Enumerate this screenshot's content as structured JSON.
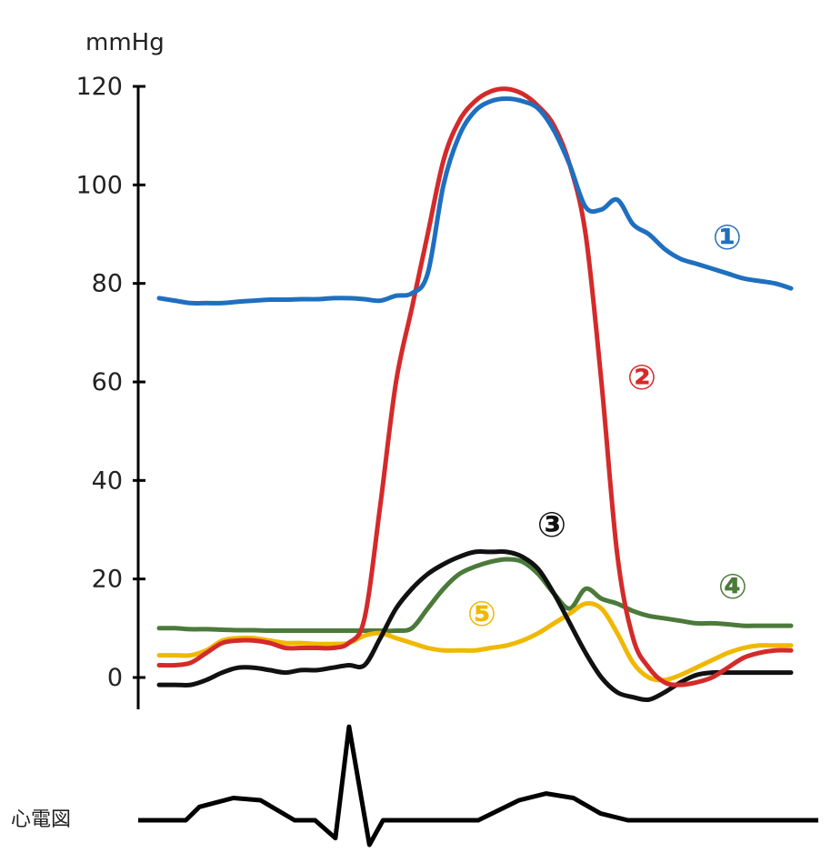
{
  "chart_data": {
    "type": "line",
    "y_unit": "mmHg",
    "ylim": [
      -5,
      120
    ],
    "y_ticks": [
      "120",
      "100",
      "80",
      "60",
      "40",
      "20",
      "0"
    ],
    "y_tick_values": [
      120,
      100,
      80,
      60,
      40,
      20,
      0
    ],
    "grid": false,
    "x": [
      0,
      2.5,
      5,
      7.5,
      10,
      12.5,
      15,
      17.5,
      20,
      22.5,
      25,
      27.5,
      30,
      32.5,
      35,
      37.5,
      40,
      42.5,
      45,
      47.5,
      50,
      52.5,
      55,
      57.5,
      60,
      62.5,
      65,
      67.5,
      70,
      72.5,
      75,
      77.5,
      80,
      82.5,
      85,
      87.5,
      90,
      92.5,
      95,
      97.5,
      100
    ],
    "series": [
      {
        "name": "①",
        "color": "#1f6fc0",
        "values": [
          77,
          76.5,
          76,
          76,
          76,
          76.3,
          76.5,
          76.7,
          76.7,
          76.8,
          76.8,
          77,
          77,
          76.8,
          76.5,
          77.5,
          78,
          82,
          100,
          110,
          115,
          117,
          117.5,
          117,
          115.5,
          111,
          104,
          95.5,
          95,
          97,
          92,
          90,
          87,
          85,
          84,
          83,
          82,
          81,
          80.5,
          80,
          79
        ]
      },
      {
        "name": "②",
        "color": "#d42a2a",
        "values": [
          2.5,
          2.5,
          3,
          5,
          7,
          7.5,
          7.5,
          7,
          6,
          6,
          6,
          6,
          7,
          12,
          35,
          60,
          75,
          90,
          105,
          113,
          117,
          119,
          119.5,
          118.5,
          116,
          112,
          104,
          90,
          60,
          25,
          8,
          2,
          -1,
          -1.5,
          -1,
          0,
          2,
          4,
          5,
          5.5,
          5.5
        ]
      },
      {
        "name": "③",
        "color": "#111111",
        "values": [
          -1.5,
          -1.5,
          -1.5,
          -0.5,
          1,
          2,
          2,
          1.5,
          1,
          1.5,
          1.5,
          2,
          2.5,
          2.5,
          8,
          14,
          18,
          21,
          23,
          24.5,
          25.5,
          25.5,
          25.5,
          24.5,
          22,
          17,
          11,
          5,
          0,
          -3,
          -4,
          -4.5,
          -3,
          -1,
          0.5,
          1,
          1,
          1,
          1,
          1,
          1
        ]
      },
      {
        "name": "④",
        "color": "#4b7a3a",
        "values": [
          10,
          10,
          9.8,
          9.8,
          9.7,
          9.6,
          9.6,
          9.5,
          9.5,
          9.5,
          9.5,
          9.5,
          9.5,
          9.5,
          9.5,
          9.5,
          10,
          14,
          18,
          21,
          22.5,
          23.5,
          24,
          23.5,
          21,
          17,
          14,
          18,
          16,
          15,
          13.5,
          12.5,
          12,
          11.5,
          11,
          11,
          10.8,
          10.5,
          10.5,
          10.5,
          10.5
        ]
      },
      {
        "name": "⑤",
        "color": "#f0b800",
        "values": [
          4.5,
          4.5,
          4.5,
          5.5,
          7.5,
          8,
          8,
          7.5,
          7,
          7,
          6.8,
          6.8,
          7,
          8.5,
          9,
          8,
          7,
          6,
          5.5,
          5.5,
          5.5,
          6,
          6.5,
          7.5,
          9,
          11,
          13,
          15,
          14,
          9,
          3,
          0,
          -0.5,
          0.5,
          2,
          3.5,
          5,
          6,
          6.5,
          6.5,
          6.5
        ]
      }
    ],
    "ecg": {
      "label": "心電図",
      "x": [
        0,
        7,
        9,
        14,
        18,
        23,
        26,
        29,
        31,
        34,
        36,
        39,
        42,
        44,
        50,
        56,
        60,
        64,
        68,
        72,
        76,
        80,
        90,
        100
      ],
      "values": [
        0,
        0,
        6,
        10,
        9,
        0,
        0,
        -8,
        42,
        -11,
        0,
        0,
        0,
        0,
        0,
        9,
        12,
        10,
        3,
        0,
        0,
        0,
        0,
        0
      ]
    }
  }
}
